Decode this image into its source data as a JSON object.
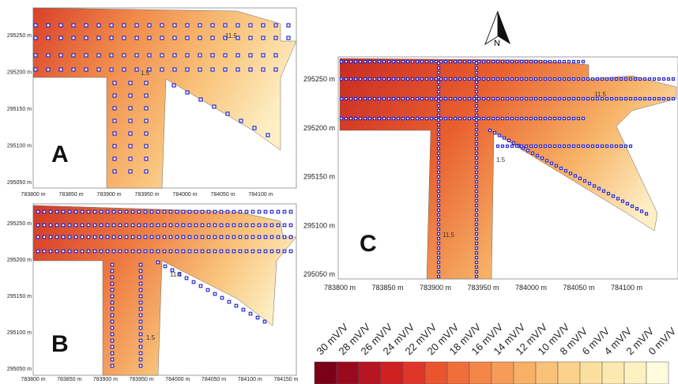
{
  "north": "N",
  "panels": [
    {
      "label": "A",
      "xticks": [
        {
          "value": 783800,
          "label": "783800 m"
        },
        {
          "value": 783850,
          "label": "783850 m"
        },
        {
          "value": 783900,
          "label": "783900 m"
        },
        {
          "value": 783950,
          "label": "783950 m"
        },
        {
          "value": 784000,
          "label": "784000 m"
        },
        {
          "value": 784050,
          "label": "784050 m"
        },
        {
          "value": 784100,
          "label": "784100 m"
        }
      ],
      "yticks": [
        {
          "value": 295250,
          "label": "295250 m"
        },
        {
          "value": 295200,
          "label": "295200 m"
        },
        {
          "value": 295150,
          "label": "295150 m"
        },
        {
          "value": 295100,
          "label": "295100 m"
        },
        {
          "value": 295050,
          "label": "295050 m"
        }
      ],
      "contour_labels": [
        "1.5",
        "11.5"
      ]
    },
    {
      "label": "B",
      "xticks": [
        {
          "value": 783800,
          "label": "783800 m"
        },
        {
          "value": 783850,
          "label": "783850 m"
        },
        {
          "value": 783900,
          "label": "783900 m"
        },
        {
          "value": 783950,
          "label": "783950 m"
        },
        {
          "value": 784000,
          "label": "784000 m"
        },
        {
          "value": 784050,
          "label": "784050 m"
        },
        {
          "value": 784100,
          "label": "784100 m"
        },
        {
          "value": 784150,
          "label": "784150 m"
        }
      ],
      "yticks": [
        {
          "value": 295250,
          "label": "295250 m"
        },
        {
          "value": 295200,
          "label": "295200 m"
        },
        {
          "value": 295150,
          "label": "295150 m"
        },
        {
          "value": 295100,
          "label": "295100 m"
        },
        {
          "value": 295050,
          "label": "295050 m"
        }
      ],
      "contour_labels": [
        "1.5",
        "11.5"
      ]
    },
    {
      "label": "C",
      "xticks": [
        {
          "value": 783800,
          "label": "783800 m"
        },
        {
          "value": 783850,
          "label": "783850 m"
        },
        {
          "value": 783900,
          "label": "783900 m"
        },
        {
          "value": 783950,
          "label": "783950 m"
        },
        {
          "value": 784000,
          "label": "784000 m"
        },
        {
          "value": 784050,
          "label": "784050 m"
        },
        {
          "value": 784100,
          "label": "784100 m"
        }
      ],
      "yticks": [
        {
          "value": 295250,
          "label": "295250 m"
        },
        {
          "value": 295200,
          "label": "295200 m"
        },
        {
          "value": 295150,
          "label": "295150 m"
        },
        {
          "value": 295100,
          "label": "295100 m"
        },
        {
          "value": 295050,
          "label": "295050 m"
        }
      ],
      "contour_labels": [
        "11.5",
        "1.5",
        "11.5"
      ]
    }
  ],
  "legend": {
    "labels": [
      "30 mV/V",
      "28 mV/V",
      "26 mV/V",
      "24 mV/V",
      "22 mV/V",
      "20 mV/V",
      "18 mV/V",
      "16 mV/V",
      "14 mV/V",
      "12 mV/V",
      "10 mV/V",
      "8 mV/V",
      "6 mV/V",
      "4 mV/V",
      "2 mV/V",
      "0 mV/V"
    ],
    "colors": [
      "#7a0018",
      "#9a0a1e",
      "#b71522",
      "#cf2020",
      "#e0362a",
      "#ea5530",
      "#f06e3a",
      "#f4864a",
      "#f69c58",
      "#f8b066",
      "#f9c278",
      "#fad28c",
      "#fbdf9e",
      "#fce9b0",
      "#fdf1c2",
      "#fffbdc"
    ]
  }
}
